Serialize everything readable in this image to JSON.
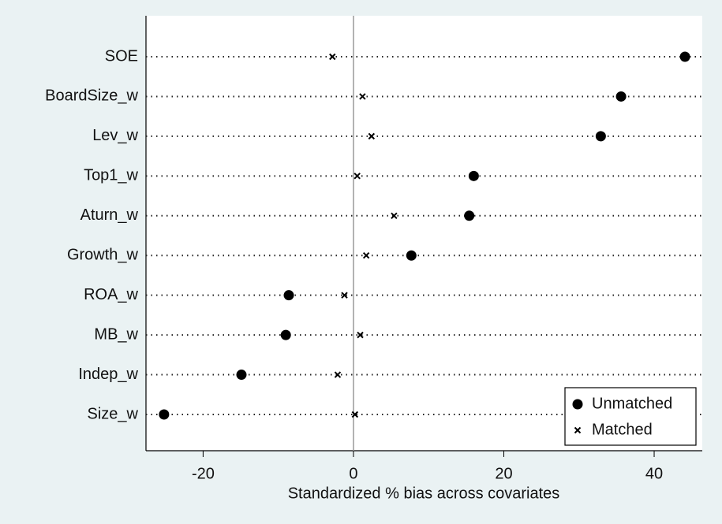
{
  "chart_data": {
    "type": "dot",
    "xlabel": "Standardized % bias across covariates",
    "categories": [
      "SOE",
      "BoardSize_w",
      "Lev_w",
      "Top1_w",
      "Aturn_w",
      "Growth_w",
      "ROA_w",
      "MB_w",
      "Indep_w",
      "Size_w"
    ],
    "series": [
      {
        "name": "Unmatched",
        "color": "#000000",
        "marker": "circle",
        "values": [
          44.1,
          35.6,
          32.9,
          16.0,
          15.4,
          7.7,
          -8.6,
          -9.0,
          -14.9,
          -25.2
        ]
      },
      {
        "name": "Matched",
        "color": "#000000",
        "marker": "x",
        "values": [
          -2.8,
          1.2,
          2.4,
          0.5,
          5.4,
          1.7,
          -1.2,
          0.9,
          -2.1,
          0.2
        ]
      }
    ],
    "xlim": [
      -27.6,
      46.4
    ],
    "xticks": [
      -20,
      0,
      20,
      40
    ],
    "xline": 0,
    "legend": "lower right"
  }
}
